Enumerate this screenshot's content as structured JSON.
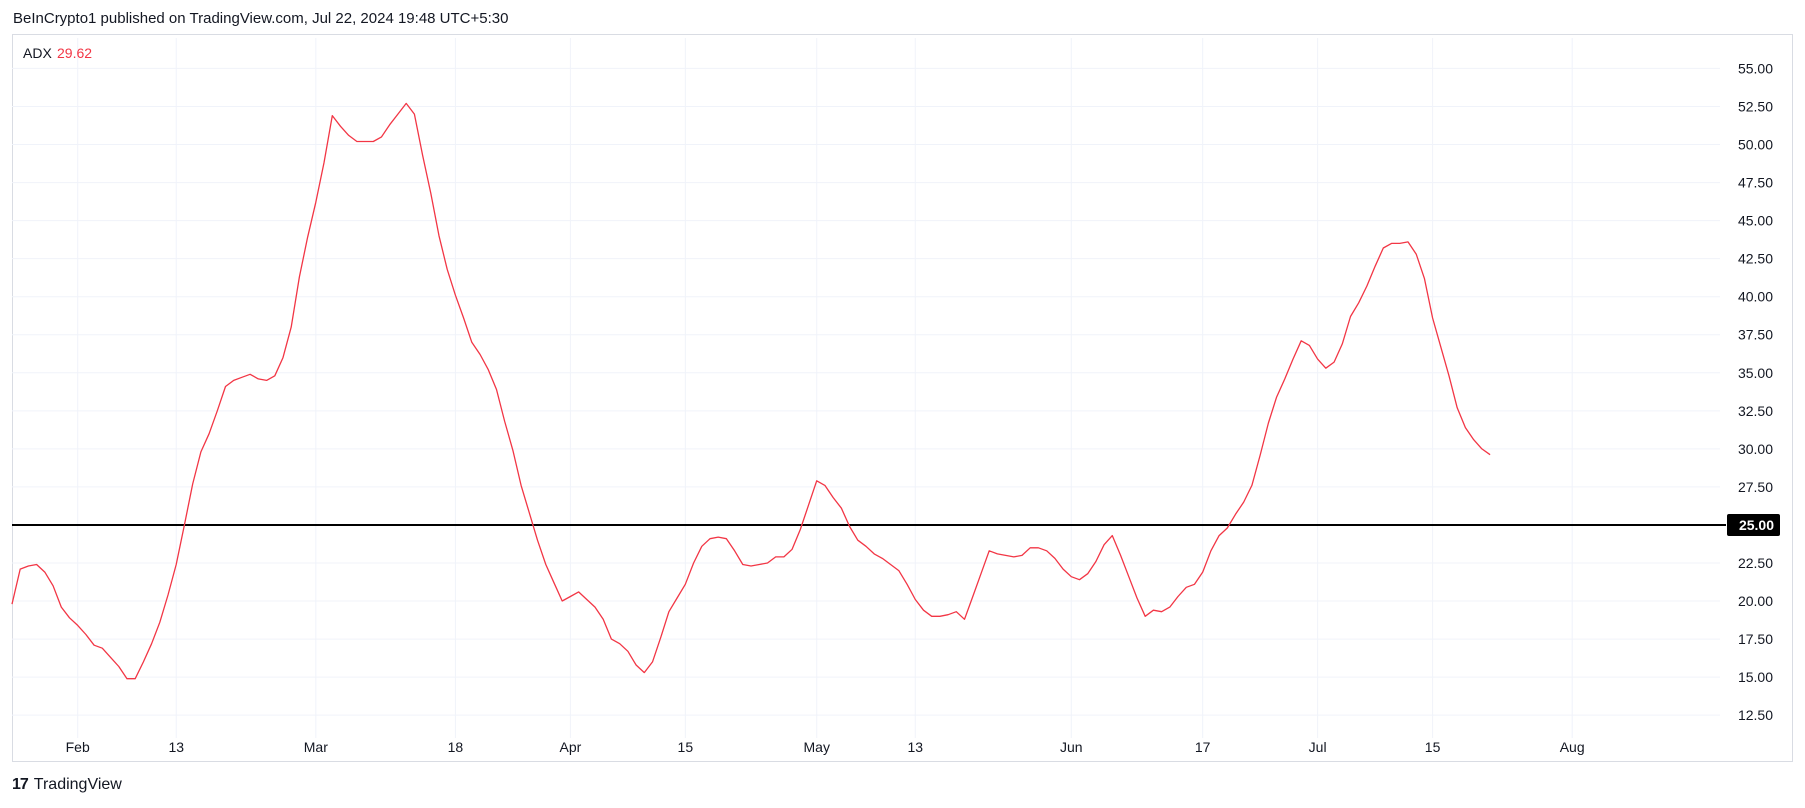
{
  "header": {
    "text": "BeInCrypto1 published on TradingView.com, Jul 22, 2024 19:48 UTC+5:30"
  },
  "footer": {
    "logo": "17",
    "brand": "TradingView"
  },
  "colors": {
    "series": "#f23645",
    "reference": "#000000",
    "grid": "#f0f3fa",
    "axis_text": "#131722"
  },
  "chart_data": {
    "type": "line",
    "indicator": {
      "name": "ADX",
      "last_value": "29.62"
    },
    "y_ticks": [
      "12.50",
      "15.00",
      "17.50",
      "20.00",
      "22.50",
      "25.00",
      "27.50",
      "30.00",
      "32.50",
      "35.00",
      "37.50",
      "40.00",
      "42.50",
      "45.00",
      "47.50",
      "50.00",
      "52.50",
      "55.00"
    ],
    "ylim": [
      11,
      57
    ],
    "x_ticks": [
      {
        "label": "Feb",
        "date": "2024-02-01"
      },
      {
        "label": "13",
        "date": "2024-02-13"
      },
      {
        "label": "Mar",
        "date": "2024-03-01"
      },
      {
        "label": "18",
        "date": "2024-03-18"
      },
      {
        "label": "Apr",
        "date": "2024-04-01"
      },
      {
        "label": "15",
        "date": "2024-04-15"
      },
      {
        "label": "May",
        "date": "2024-05-01"
      },
      {
        "label": "13",
        "date": "2024-05-13"
      },
      {
        "label": "Jun",
        "date": "2024-06-01"
      },
      {
        "label": "17",
        "date": "2024-06-17"
      },
      {
        "label": "Jul",
        "date": "2024-07-01"
      },
      {
        "label": "15",
        "date": "2024-07-15"
      },
      {
        "label": "Aug",
        "date": "2024-08-01"
      }
    ],
    "xlim": [
      "2024-01-24",
      "2024-08-19"
    ],
    "reference_line": {
      "value": 25.0,
      "label": "25.00"
    },
    "series": [
      {
        "name": "ADX",
        "points": [
          [
            "2024-01-24",
            19.8
          ],
          [
            "2024-01-25",
            22.1
          ],
          [
            "2024-01-26",
            22.3
          ],
          [
            "2024-01-27",
            22.4
          ],
          [
            "2024-01-28",
            21.9
          ],
          [
            "2024-01-29",
            21.0
          ],
          [
            "2024-01-30",
            19.6
          ],
          [
            "2024-01-31",
            18.9
          ],
          [
            "2024-02-01",
            18.4
          ],
          [
            "2024-02-02",
            17.8
          ],
          [
            "2024-02-03",
            17.1
          ],
          [
            "2024-02-04",
            16.9
          ],
          [
            "2024-02-05",
            16.3
          ],
          [
            "2024-02-06",
            15.7
          ],
          [
            "2024-02-07",
            14.9
          ],
          [
            "2024-02-08",
            14.9
          ],
          [
            "2024-02-09",
            16.0
          ],
          [
            "2024-02-10",
            17.2
          ],
          [
            "2024-02-11",
            18.6
          ],
          [
            "2024-02-12",
            20.4
          ],
          [
            "2024-02-13",
            22.4
          ],
          [
            "2024-02-14",
            25.0
          ],
          [
            "2024-02-15",
            27.7
          ],
          [
            "2024-02-16",
            29.8
          ],
          [
            "2024-02-17",
            31.0
          ],
          [
            "2024-02-18",
            32.5
          ],
          [
            "2024-02-19",
            34.1
          ],
          [
            "2024-02-20",
            34.5
          ],
          [
            "2024-02-21",
            34.7
          ],
          [
            "2024-02-22",
            34.9
          ],
          [
            "2024-02-23",
            34.6
          ],
          [
            "2024-02-24",
            34.5
          ],
          [
            "2024-02-25",
            34.8
          ],
          [
            "2024-02-26",
            36.0
          ],
          [
            "2024-02-27",
            38.0
          ],
          [
            "2024-02-28",
            41.3
          ],
          [
            "2024-02-29",
            43.9
          ],
          [
            "2024-03-01",
            46.2
          ],
          [
            "2024-03-02",
            48.8
          ],
          [
            "2024-03-03",
            51.9
          ],
          [
            "2024-03-04",
            51.2
          ],
          [
            "2024-03-05",
            50.6
          ],
          [
            "2024-03-06",
            50.2
          ],
          [
            "2024-03-07",
            50.2
          ],
          [
            "2024-03-08",
            50.2
          ],
          [
            "2024-03-09",
            50.5
          ],
          [
            "2024-03-10",
            51.3
          ],
          [
            "2024-03-11",
            52.0
          ],
          [
            "2024-03-12",
            52.7
          ],
          [
            "2024-03-13",
            52.0
          ],
          [
            "2024-03-14",
            49.3
          ],
          [
            "2024-03-15",
            46.8
          ],
          [
            "2024-03-16",
            44.0
          ],
          [
            "2024-03-17",
            41.8
          ],
          [
            "2024-03-18",
            40.1
          ],
          [
            "2024-03-19",
            38.6
          ],
          [
            "2024-03-20",
            37.0
          ],
          [
            "2024-03-21",
            36.2
          ],
          [
            "2024-03-22",
            35.2
          ],
          [
            "2024-03-23",
            33.9
          ],
          [
            "2024-03-24",
            31.8
          ],
          [
            "2024-03-25",
            29.9
          ],
          [
            "2024-03-26",
            27.6
          ],
          [
            "2024-03-27",
            25.8
          ],
          [
            "2024-03-28",
            24.0
          ],
          [
            "2024-03-29",
            22.4
          ],
          [
            "2024-03-30",
            21.2
          ],
          [
            "2024-03-31",
            20.0
          ],
          [
            "2024-04-01",
            20.3
          ],
          [
            "2024-04-02",
            20.6
          ],
          [
            "2024-04-03",
            20.1
          ],
          [
            "2024-04-04",
            19.6
          ],
          [
            "2024-04-05",
            18.8
          ],
          [
            "2024-04-06",
            17.5
          ],
          [
            "2024-04-07",
            17.2
          ],
          [
            "2024-04-08",
            16.7
          ],
          [
            "2024-04-09",
            15.8
          ],
          [
            "2024-04-10",
            15.3
          ],
          [
            "2024-04-11",
            16.0
          ],
          [
            "2024-04-12",
            17.6
          ],
          [
            "2024-04-13",
            19.3
          ],
          [
            "2024-04-14",
            20.2
          ],
          [
            "2024-04-15",
            21.1
          ],
          [
            "2024-04-16",
            22.5
          ],
          [
            "2024-04-17",
            23.6
          ],
          [
            "2024-04-18",
            24.1
          ],
          [
            "2024-04-19",
            24.2
          ],
          [
            "2024-04-20",
            24.1
          ],
          [
            "2024-04-21",
            23.3
          ],
          [
            "2024-04-22",
            22.4
          ],
          [
            "2024-04-23",
            22.3
          ],
          [
            "2024-04-24",
            22.4
          ],
          [
            "2024-04-25",
            22.5
          ],
          [
            "2024-04-26",
            22.9
          ],
          [
            "2024-04-27",
            22.9
          ],
          [
            "2024-04-28",
            23.4
          ],
          [
            "2024-04-29",
            24.7
          ],
          [
            "2024-04-30",
            26.3
          ],
          [
            "2024-05-01",
            27.9
          ],
          [
            "2024-05-02",
            27.6
          ],
          [
            "2024-05-03",
            26.8
          ],
          [
            "2024-05-04",
            26.1
          ],
          [
            "2024-05-05",
            24.9
          ],
          [
            "2024-05-06",
            24.0
          ],
          [
            "2024-05-07",
            23.6
          ],
          [
            "2024-05-08",
            23.1
          ],
          [
            "2024-05-09",
            22.8
          ],
          [
            "2024-05-10",
            22.4
          ],
          [
            "2024-05-11",
            22.0
          ],
          [
            "2024-05-12",
            21.1
          ],
          [
            "2024-05-13",
            20.1
          ],
          [
            "2024-05-14",
            19.4
          ],
          [
            "2024-05-15",
            19.0
          ],
          [
            "2024-05-16",
            19.0
          ],
          [
            "2024-05-17",
            19.1
          ],
          [
            "2024-05-18",
            19.3
          ],
          [
            "2024-05-19",
            18.8
          ],
          [
            "2024-05-20",
            20.3
          ],
          [
            "2024-05-21",
            21.8
          ],
          [
            "2024-05-22",
            23.3
          ],
          [
            "2024-05-23",
            23.1
          ],
          [
            "2024-05-24",
            23.0
          ],
          [
            "2024-05-25",
            22.9
          ],
          [
            "2024-05-26",
            23.0
          ],
          [
            "2024-05-27",
            23.5
          ],
          [
            "2024-05-28",
            23.5
          ],
          [
            "2024-05-29",
            23.3
          ],
          [
            "2024-05-30",
            22.8
          ],
          [
            "2024-05-31",
            22.1
          ],
          [
            "2024-06-01",
            21.6
          ],
          [
            "2024-06-02",
            21.4
          ],
          [
            "2024-06-03",
            21.8
          ],
          [
            "2024-06-04",
            22.6
          ],
          [
            "2024-06-05",
            23.7
          ],
          [
            "2024-06-06",
            24.3
          ],
          [
            "2024-06-07",
            23.0
          ],
          [
            "2024-06-08",
            21.6
          ],
          [
            "2024-06-09",
            20.2
          ],
          [
            "2024-06-10",
            19.0
          ],
          [
            "2024-06-11",
            19.4
          ],
          [
            "2024-06-12",
            19.3
          ],
          [
            "2024-06-13",
            19.6
          ],
          [
            "2024-06-14",
            20.3
          ],
          [
            "2024-06-15",
            20.9
          ],
          [
            "2024-06-16",
            21.1
          ],
          [
            "2024-06-17",
            21.9
          ],
          [
            "2024-06-18",
            23.3
          ],
          [
            "2024-06-19",
            24.3
          ],
          [
            "2024-06-20",
            24.8
          ],
          [
            "2024-06-21",
            25.7
          ],
          [
            "2024-06-22",
            26.5
          ],
          [
            "2024-06-23",
            27.6
          ],
          [
            "2024-06-24",
            29.6
          ],
          [
            "2024-06-25",
            31.7
          ],
          [
            "2024-06-26",
            33.4
          ],
          [
            "2024-06-27",
            34.6
          ],
          [
            "2024-06-28",
            35.9
          ],
          [
            "2024-06-29",
            37.1
          ],
          [
            "2024-06-30",
            36.8
          ],
          [
            "2024-07-01",
            35.9
          ],
          [
            "2024-07-02",
            35.3
          ],
          [
            "2024-07-03",
            35.7
          ],
          [
            "2024-07-04",
            36.9
          ],
          [
            "2024-07-05",
            38.7
          ],
          [
            "2024-07-06",
            39.6
          ],
          [
            "2024-07-07",
            40.7
          ],
          [
            "2024-07-08",
            42.0
          ],
          [
            "2024-07-09",
            43.2
          ],
          [
            "2024-07-10",
            43.5
          ],
          [
            "2024-07-11",
            43.5
          ],
          [
            "2024-07-12",
            43.6
          ],
          [
            "2024-07-13",
            42.8
          ],
          [
            "2024-07-14",
            41.2
          ],
          [
            "2024-07-15",
            38.6
          ],
          [
            "2024-07-16",
            36.7
          ],
          [
            "2024-07-17",
            34.8
          ],
          [
            "2024-07-18",
            32.7
          ],
          [
            "2024-07-19",
            31.4
          ],
          [
            "2024-07-20",
            30.6
          ],
          [
            "2024-07-21",
            30.0
          ],
          [
            "2024-07-22",
            29.62
          ]
        ]
      }
    ]
  }
}
